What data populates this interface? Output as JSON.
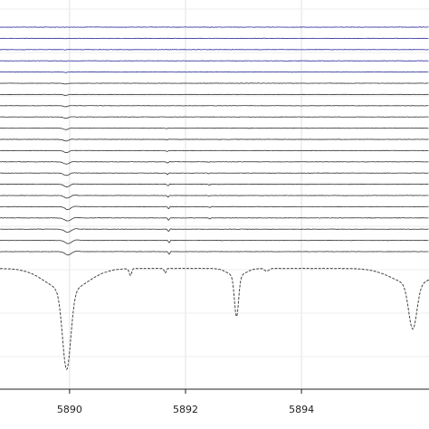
{
  "chart_data": {
    "type": "line",
    "title": "",
    "xlabel": "",
    "ylabel": "",
    "xlim": [
      5888.8,
      5896.2
    ],
    "x_ticks": [
      5890,
      5892,
      5894
    ],
    "x_tick_labels": [
      "5890",
      "5892",
      "5894"
    ],
    "grid": true,
    "legend": "none",
    "series": [
      {
        "color": "#2a2a9a",
        "baseline": 0.0,
        "features": [
          {
            "x": 5889.92,
            "depth": 0.15,
            "width": 0.03
          }
        ]
      },
      {
        "color": "#2a2a9a",
        "baseline": 1.0,
        "features": [
          {
            "x": 5889.92,
            "depth": 0.2,
            "width": 0.03
          }
        ]
      },
      {
        "color": "#2a2a9a",
        "baseline": 2.0,
        "features": [
          {
            "x": 5889.92,
            "depth": 0.3,
            "width": 0.03
          }
        ]
      },
      {
        "color": "#2a2a9a",
        "baseline": 3.0,
        "features": [
          {
            "x": 5889.93,
            "depth": 0.4,
            "width": 0.035
          }
        ]
      },
      {
        "color": "#2a2a9a",
        "baseline": 4.0,
        "features": [
          {
            "x": 5889.93,
            "depth": 0.45,
            "width": 0.035
          }
        ]
      },
      {
        "color": "#333333",
        "baseline": 5.0,
        "features": [
          {
            "x": 5889.93,
            "depth": 0.6,
            "width": 0.05
          }
        ]
      },
      {
        "color": "#333333",
        "baseline": 6.0,
        "features": [
          {
            "x": 5889.93,
            "depth": 0.8,
            "width": 0.05
          }
        ]
      },
      {
        "color": "#333333",
        "baseline": 7.0,
        "features": [
          {
            "x": 5889.93,
            "depth": 1.0,
            "width": 0.05
          }
        ]
      },
      {
        "color": "#333333",
        "baseline": 8.0,
        "features": [
          {
            "x": 5889.94,
            "depth": 1.2,
            "width": 0.06
          }
        ]
      },
      {
        "color": "#333333",
        "baseline": 9.0,
        "features": [
          {
            "x": 5889.94,
            "depth": 1.4,
            "width": 0.06
          },
          {
            "x": 5891.67,
            "depth": 0.4,
            "width": 0.02
          }
        ]
      },
      {
        "color": "#333333",
        "baseline": 10.0,
        "features": [
          {
            "x": 5889.94,
            "depth": 1.6,
            "width": 0.06
          },
          {
            "x": 5891.68,
            "depth": 0.6,
            "width": 0.02
          }
        ]
      },
      {
        "color": "#333333",
        "baseline": 11.0,
        "features": [
          {
            "x": 5889.95,
            "depth": 1.8,
            "width": 0.06
          },
          {
            "x": 5891.68,
            "depth": 0.9,
            "width": 0.02
          }
        ]
      },
      {
        "color": "#333333",
        "baseline": 12.0,
        "features": [
          {
            "x": 5889.95,
            "depth": 2.0,
            "width": 0.07
          },
          {
            "x": 5891.69,
            "depth": 1.1,
            "width": 0.02
          },
          {
            "x": 5892.4,
            "depth": 0.4,
            "width": 0.02
          }
        ]
      },
      {
        "color": "#333333",
        "baseline": 13.0,
        "features": [
          {
            "x": 5889.95,
            "depth": 2.2,
            "width": 0.07
          },
          {
            "x": 5891.69,
            "depth": 1.3,
            "width": 0.02
          },
          {
            "x": 5892.4,
            "depth": 0.6,
            "width": 0.02
          }
        ]
      },
      {
        "color": "#333333",
        "baseline": 14.0,
        "features": [
          {
            "x": 5889.96,
            "depth": 2.4,
            "width": 0.07
          },
          {
            "x": 5891.7,
            "depth": 1.5,
            "width": 0.02
          },
          {
            "x": 5892.41,
            "depth": 0.7,
            "width": 0.02
          }
        ]
      },
      {
        "color": "#333333",
        "baseline": 15.0,
        "features": [
          {
            "x": 5889.96,
            "depth": 2.5,
            "width": 0.07
          },
          {
            "x": 5891.7,
            "depth": 1.6,
            "width": 0.02
          },
          {
            "x": 5892.41,
            "depth": 0.8,
            "width": 0.02
          }
        ]
      },
      {
        "color": "#333333",
        "baseline": 16.0,
        "features": [
          {
            "x": 5889.97,
            "depth": 2.6,
            "width": 0.07
          },
          {
            "x": 5891.71,
            "depth": 1.8,
            "width": 0.02
          },
          {
            "x": 5892.42,
            "depth": 0.8,
            "width": 0.02
          }
        ]
      },
      {
        "color": "#333333",
        "baseline": 17.0,
        "features": [
          {
            "x": 5889.97,
            "depth": 2.7,
            "width": 0.08
          },
          {
            "x": 5891.71,
            "depth": 2.0,
            "width": 0.02
          },
          {
            "x": 5892.42,
            "depth": 0.9,
            "width": 0.02
          }
        ]
      },
      {
        "color": "#333333",
        "baseline": 18.0,
        "features": [
          {
            "x": 5889.97,
            "depth": 2.8,
            "width": 0.08
          },
          {
            "x": 5891.71,
            "depth": 2.1,
            "width": 0.02
          }
        ]
      },
      {
        "color": "#333333",
        "baseline": 19.0,
        "features": [
          {
            "x": 5889.98,
            "depth": 2.9,
            "width": 0.08
          },
          {
            "x": 5891.72,
            "depth": 2.2,
            "width": 0.02
          }
        ]
      },
      {
        "color": "#333333",
        "baseline": 20.0,
        "features": [
          {
            "x": 5889.98,
            "depth": 3.0,
            "width": 0.08
          },
          {
            "x": 5891.72,
            "depth": 2.3,
            "width": 0.02
          }
        ]
      }
    ],
    "reference_spectrum": {
      "color": "#444444",
      "dash": "dashed",
      "baseline": 21.5,
      "features": [
        {
          "x": 5889.95,
          "depth": 7.0,
          "width": 0.1
        },
        {
          "x": 5889.95,
          "depth": 2.0,
          "width": 0.5
        },
        {
          "x": 5891.05,
          "depth": 0.6,
          "width": 0.03
        },
        {
          "x": 5891.65,
          "depth": 0.4,
          "width": 0.025
        },
        {
          "x": 5892.88,
          "depth": 3.6,
          "width": 0.05
        },
        {
          "x": 5892.88,
          "depth": 0.7,
          "width": 0.2
        },
        {
          "x": 5893.4,
          "depth": 0.25,
          "width": 0.05
        },
        {
          "x": 5895.92,
          "depth": 4.0,
          "width": 0.1
        },
        {
          "x": 5895.92,
          "depth": 1.4,
          "width": 0.5
        }
      ]
    }
  }
}
